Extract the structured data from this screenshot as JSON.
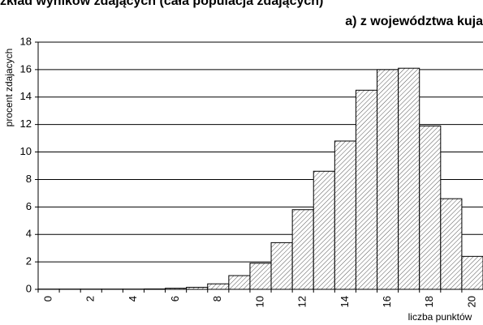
{
  "chart_data": {
    "type": "bar",
    "title": "zkład wyników zdających (cała populacja zdających)",
    "subtitle": "a)  z województwa kuja",
    "x_label": "liczba punktów",
    "y_label": "procent zdajacych",
    "categories": [
      "0",
      null,
      "2",
      null,
      "4",
      null,
      "6",
      null,
      "8",
      null,
      "10",
      null,
      "12",
      null,
      "14",
      null,
      "16",
      null,
      "18",
      null,
      "20"
    ],
    "values": [
      0.02,
      0.02,
      0.02,
      0.02,
      0.02,
      0.03,
      0.08,
      0.15,
      0.4,
      1.0,
      1.9,
      3.4,
      5.8,
      8.6,
      10.8,
      14.5,
      16.0,
      16.1,
      11.9,
      6.6,
      2.4
    ],
    "color": "#ffffff",
    "ylim": [
      0,
      18
    ],
    "yticks": [
      0,
      2,
      4,
      6,
      8,
      10,
      12,
      14,
      16,
      18
    ],
    "grid": true
  }
}
